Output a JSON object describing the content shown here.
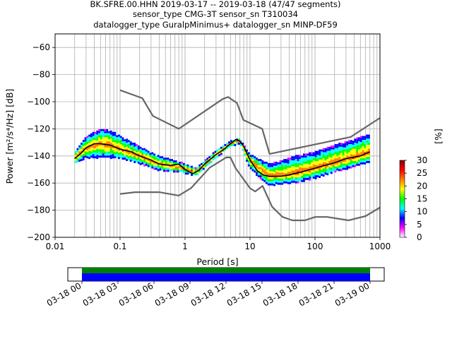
{
  "title_lines": [
    "BK.SFRE.00.HHN   2019-03-17 -- 2019-03-18  (47/47 segments)",
    "sensor_type CMG-3T sensor_sn T310034",
    "datalogger_type GuralpMinimus+ datalogger_sn MINP-DF59"
  ],
  "colorbar": {
    "label": "[%]",
    "ticks": [
      "0",
      "5",
      "10",
      "15",
      "20",
      "25",
      "30"
    ],
    "range": [
      0,
      30
    ],
    "colormap": [
      "#ffffff",
      "#ff00ff",
      "#0000ff",
      "#00ffff",
      "#00ff00",
      "#ffff00",
      "#ff7f00",
      "#ff0000",
      "#7f0000"
    ]
  },
  "timeline": {
    "tick_labels": [
      "03-18 00",
      "03-18 03",
      "03-18 06",
      "03-18 09",
      "03-18 12",
      "03-18 15",
      "03-18 18",
      "03-18 21",
      "03-19 00"
    ],
    "bar_colors": {
      "top": "#008000",
      "bottom": "#0000ff"
    }
  },
  "chart_data": {
    "type": "line",
    "xlabel": "Period [s]",
    "ylabel": "Power [m²/s⁴/Hz] [dB]",
    "xscale": "log",
    "xlim": [
      0.01,
      1000
    ],
    "ylim": [
      -200,
      -50
    ],
    "xticks": [
      "0.01",
      "0.1",
      "1",
      "10",
      "100",
      "1000"
    ],
    "yticks": [
      "−60",
      "−80",
      "−100",
      "−120",
      "−140",
      "−160",
      "−180",
      "−200"
    ],
    "grid": true,
    "series": [
      {
        "role": "mean",
        "color": "#000000",
        "x": [
          0.02,
          0.025,
          0.03,
          0.04,
          0.05,
          0.07,
          0.1,
          0.15,
          0.2,
          0.3,
          0.4,
          0.6,
          0.8,
          1.0,
          1.3,
          1.6,
          2.0,
          3.0,
          4.0,
          5.0,
          6.0,
          7.0,
          8.0,
          10,
          13,
          16,
          20,
          30,
          40,
          60,
          100,
          200,
          300,
          500,
          700
        ],
        "y": [
          -142,
          -138,
          -134,
          -131,
          -131,
          -132,
          -135,
          -137,
          -140,
          -143,
          -146,
          -147,
          -146,
          -150,
          -153,
          -151,
          -146,
          -139,
          -135,
          -131,
          -128,
          -129,
          -133,
          -143,
          -151,
          -154,
          -155,
          -155,
          -154,
          -152,
          -149,
          -145,
          -142,
          -140,
          -137
        ]
      },
      {
        "role": "high noise model",
        "color": "#666666",
        "x": [
          0.1,
          0.22,
          0.32,
          0.8,
          3.8,
          4.6,
          6.3,
          7.9,
          15.4,
          20,
          354.8,
          1000
        ],
        "y": [
          -91.5,
          -97.4,
          -110.5,
          -120,
          -98,
          -96.5,
          -101,
          -113.5,
          -120,
          -138.5,
          -126,
          -112
        ]
      },
      {
        "role": "low noise model",
        "color": "#666666",
        "x": [
          0.1,
          0.17,
          0.4,
          0.8,
          1.24,
          2.4,
          4.3,
          5,
          6,
          10,
          12,
          15.6,
          21.9,
          31.6,
          45,
          70,
          101,
          154,
          328,
          600,
          1000
        ],
        "y": [
          -168,
          -166.7,
          -166.7,
          -169.2,
          -163.7,
          -148.6,
          -141.1,
          -141.1,
          -149,
          -163.8,
          -166.2,
          -162.1,
          -177.5,
          -185,
          -187.5,
          -187.5,
          -185,
          -185,
          -187.5,
          -184.4,
          -178
        ]
      }
    ],
    "probability_density": {
      "colorbar_range_percent": [
        0,
        30
      ],
      "periods": [
        0.02,
        0.03,
        0.05,
        0.07,
        0.1,
        0.2,
        0.4,
        0.8,
        1.5,
        3,
        5,
        7,
        10,
        20,
        50,
        100,
        200,
        500,
        700
      ],
      "mode_db": [
        -142,
        -134,
        -131,
        -132,
        -135,
        -140,
        -146,
        -148,
        -152,
        -139,
        -131,
        -129,
        -143,
        -155,
        -153,
        -149,
        -145,
        -140,
        -137
      ],
      "spread_low_db": [
        -146,
        -142,
        -142,
        -142,
        -142,
        -146,
        -151,
        -152,
        -155,
        -142,
        -133,
        -131,
        -150,
        -162,
        -160,
        -157,
        -152,
        -147,
        -145
      ],
      "spread_high_db": [
        -137,
        -126,
        -120,
        -121,
        -125,
        -133,
        -140,
        -144,
        -149,
        -136,
        -129,
        -127,
        -139,
        -146,
        -140,
        -137,
        -132,
        -126,
        -124
      ]
    }
  }
}
